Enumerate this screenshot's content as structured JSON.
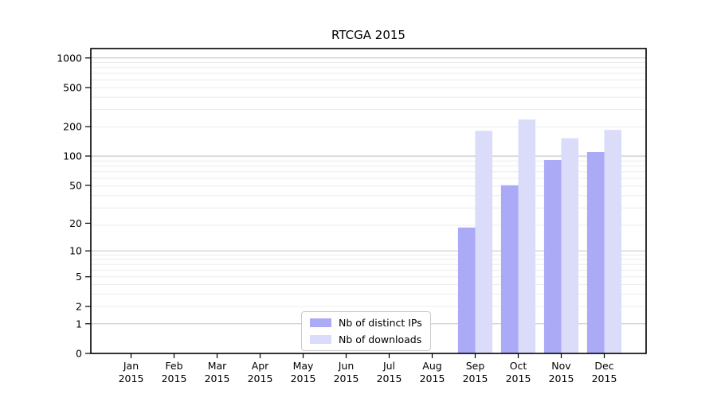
{
  "title": "RTCGA 2015",
  "chart_data": {
    "type": "bar",
    "title": "RTCGA 2015",
    "categories": [
      "Jan",
      "Feb",
      "Mar",
      "Apr",
      "May",
      "Jun",
      "Jul",
      "Aug",
      "Sep",
      "Oct",
      "Nov",
      "Dec"
    ],
    "category_year": "2015",
    "series": [
      {
        "name": "Nb of distinct IPs",
        "color": "#aaaaf7",
        "values": [
          0,
          0,
          0,
          0,
          0,
          0,
          0,
          0,
          18,
          50,
          91,
          110
        ]
      },
      {
        "name": "Nb of downloads",
        "color": "#dbdbfa",
        "values": [
          0,
          0,
          0,
          0,
          0,
          0,
          0,
          0,
          181,
          236,
          152,
          185
        ]
      }
    ],
    "yscale": "log1p",
    "ylim": [
      0,
      1246
    ],
    "yticks": [
      0,
      1,
      2,
      5,
      10,
      20,
      50,
      100,
      200,
      500,
      1000
    ],
    "grid_major_values": [
      1,
      10,
      100,
      1000
    ],
    "grid": "horizontal",
    "legend_position": "lower center",
    "colors": {
      "grid_major": "#c6c6c6",
      "grid_minor": "#ececec",
      "axis": "#000000",
      "background": "#ffffff"
    }
  }
}
